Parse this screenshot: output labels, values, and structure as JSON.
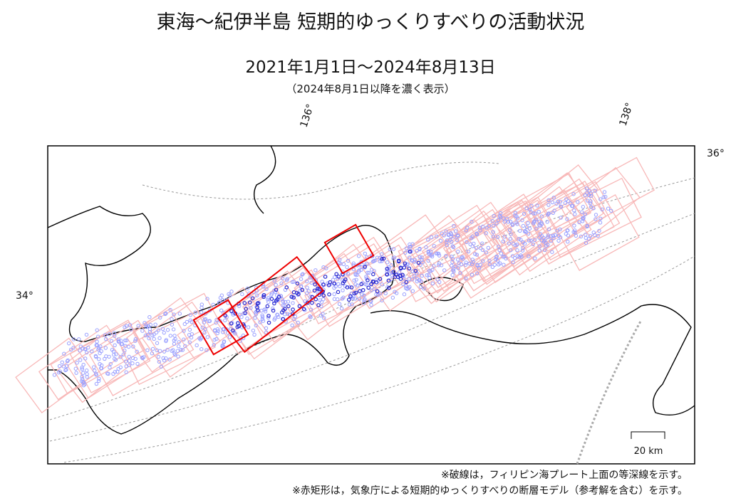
{
  "header": {
    "title": "東海～紀伊半島 短期的ゆっくりすべりの活動状況",
    "period": "2021年1月1日～2024年8月13日",
    "note": "（2024年8月1日以降を濃く表示）"
  },
  "map": {
    "lon_labels": [
      "136°",
      "138°"
    ],
    "lat_labels": [
      "34°",
      "36°"
    ],
    "scale_label": "20 km"
  },
  "footnotes": [
    "※破線は，フィリピン海プレート上面の等深線を示す。",
    "※赤矩形は，気象庁による短期的ゆっくりすべりの断層モデル（参考解を含む）を示す。"
  ]
}
